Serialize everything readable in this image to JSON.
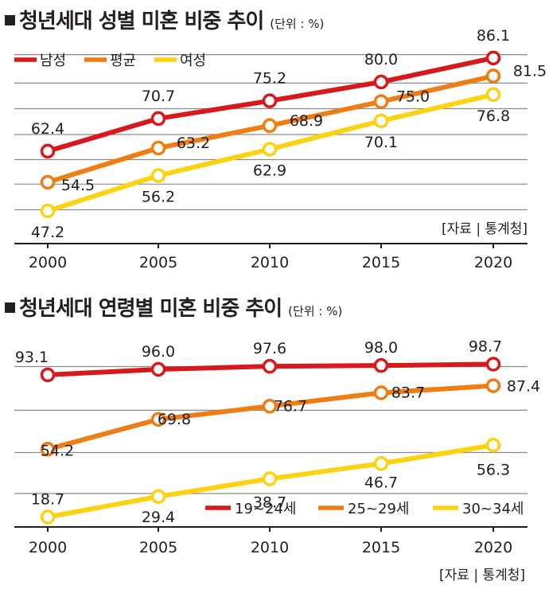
{
  "chart_data": [
    {
      "type": "line",
      "title": "청년세대 성별 미혼 비중 추이",
      "unit": "(단위 : %)",
      "source": "[자료 | 통계청]",
      "x": [
        "2000",
        "2005",
        "2010",
        "2015",
        "2020"
      ],
      "ylim": [
        40,
        90
      ],
      "grid": true,
      "legend_position": "top-left",
      "series": [
        {
          "name": "남성",
          "color": "#d7191c",
          "values": [
            62.4,
            70.7,
            75.2,
            80.0,
            86.1
          ],
          "labels": [
            "62.4",
            "70.7",
            "75.2",
            "80.0",
            "86.1"
          ]
        },
        {
          "name": "평균",
          "color": "#ee7d14",
          "values": [
            54.5,
            63.2,
            68.9,
            75.0,
            81.5
          ],
          "labels": [
            "54.5",
            "63.2",
            "68.9",
            "75.0",
            "81.5"
          ]
        },
        {
          "name": "여성",
          "color": "#fcd211",
          "values": [
            47.2,
            56.2,
            62.9,
            70.1,
            76.8
          ],
          "labels": [
            "47.2",
            "56.2",
            "62.9",
            "70.1",
            "76.8"
          ]
        }
      ]
    },
    {
      "type": "line",
      "title": "청년세대 연령별 미혼 비중 추이",
      "unit": "(단위 : %)",
      "source": "[자료 | 통계청]",
      "x": [
        "2000",
        "2005",
        "2010",
        "2015",
        "2020"
      ],
      "ylim": [
        10,
        100
      ],
      "grid": true,
      "legend_position": "bottom-right",
      "series": [
        {
          "name": "19~24세",
          "color": "#d7191c",
          "values": [
            93.1,
            96.0,
            97.6,
            98.0,
            98.7
          ],
          "labels": [
            "93.1",
            "96.0",
            "97.6",
            "98.0",
            "98.7"
          ]
        },
        {
          "name": "25~29세",
          "color": "#ee7d14",
          "values": [
            54.2,
            69.8,
            76.7,
            83.7,
            87.4
          ],
          "labels": [
            "54.2",
            "69.8",
            "76.7",
            "83.7",
            "87.4"
          ]
        },
        {
          "name": "30~34세",
          "color": "#fcd211",
          "values": [
            18.7,
            29.4,
            38.7,
            46.7,
            56.3
          ],
          "labels": [
            "18.7",
            "29.4",
            "38.7",
            "46.7",
            "56.3"
          ]
        }
      ]
    }
  ]
}
